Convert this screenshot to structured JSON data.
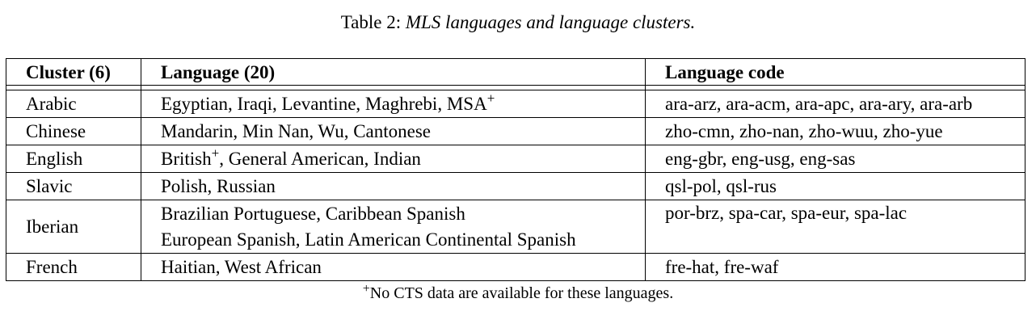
{
  "caption": {
    "label": "Table 2:",
    "text": "MLS languages and language clusters."
  },
  "table": {
    "headers": [
      "Cluster (6)",
      "Language (20)",
      "Language code"
    ],
    "rows": [
      {
        "cluster": "Arabic",
        "languages": [
          "Egyptian, Iraqi, Levantine, Maghrebi, MSA"
        ],
        "plus_after_line": [
          true
        ],
        "codes": "ara-arz, ara-acm, ara-apc, ara-ary, ara-arb"
      },
      {
        "cluster": "Chinese",
        "languages": [
          "Mandarin, Min Nan, Wu, Cantonese"
        ],
        "plus_after_line": [
          false
        ],
        "codes": "zho-cmn, zho-nan, zho-wuu, zho-yue"
      },
      {
        "cluster": "English",
        "languages_parts": [
          "British",
          ", General American, Indian"
        ],
        "codes": "eng-gbr, eng-usg, eng-sas"
      },
      {
        "cluster": "Slavic",
        "languages": [
          "Polish, Russian"
        ],
        "codes": "qsl-pol, qsl-rus"
      },
      {
        "cluster": "Iberian",
        "languages": [
          "Brazilian Portuguese, Caribbean Spanish",
          "European Spanish, Latin American Continental Spanish"
        ],
        "codes": "por-brz, spa-car, spa-eur, spa-lac"
      },
      {
        "cluster": "French",
        "languages": [
          "Haitian, West African"
        ],
        "codes": "fre-hat, fre-waf"
      }
    ]
  },
  "plus_marker": "+",
  "footnote": "No CTS data are available for these languages."
}
